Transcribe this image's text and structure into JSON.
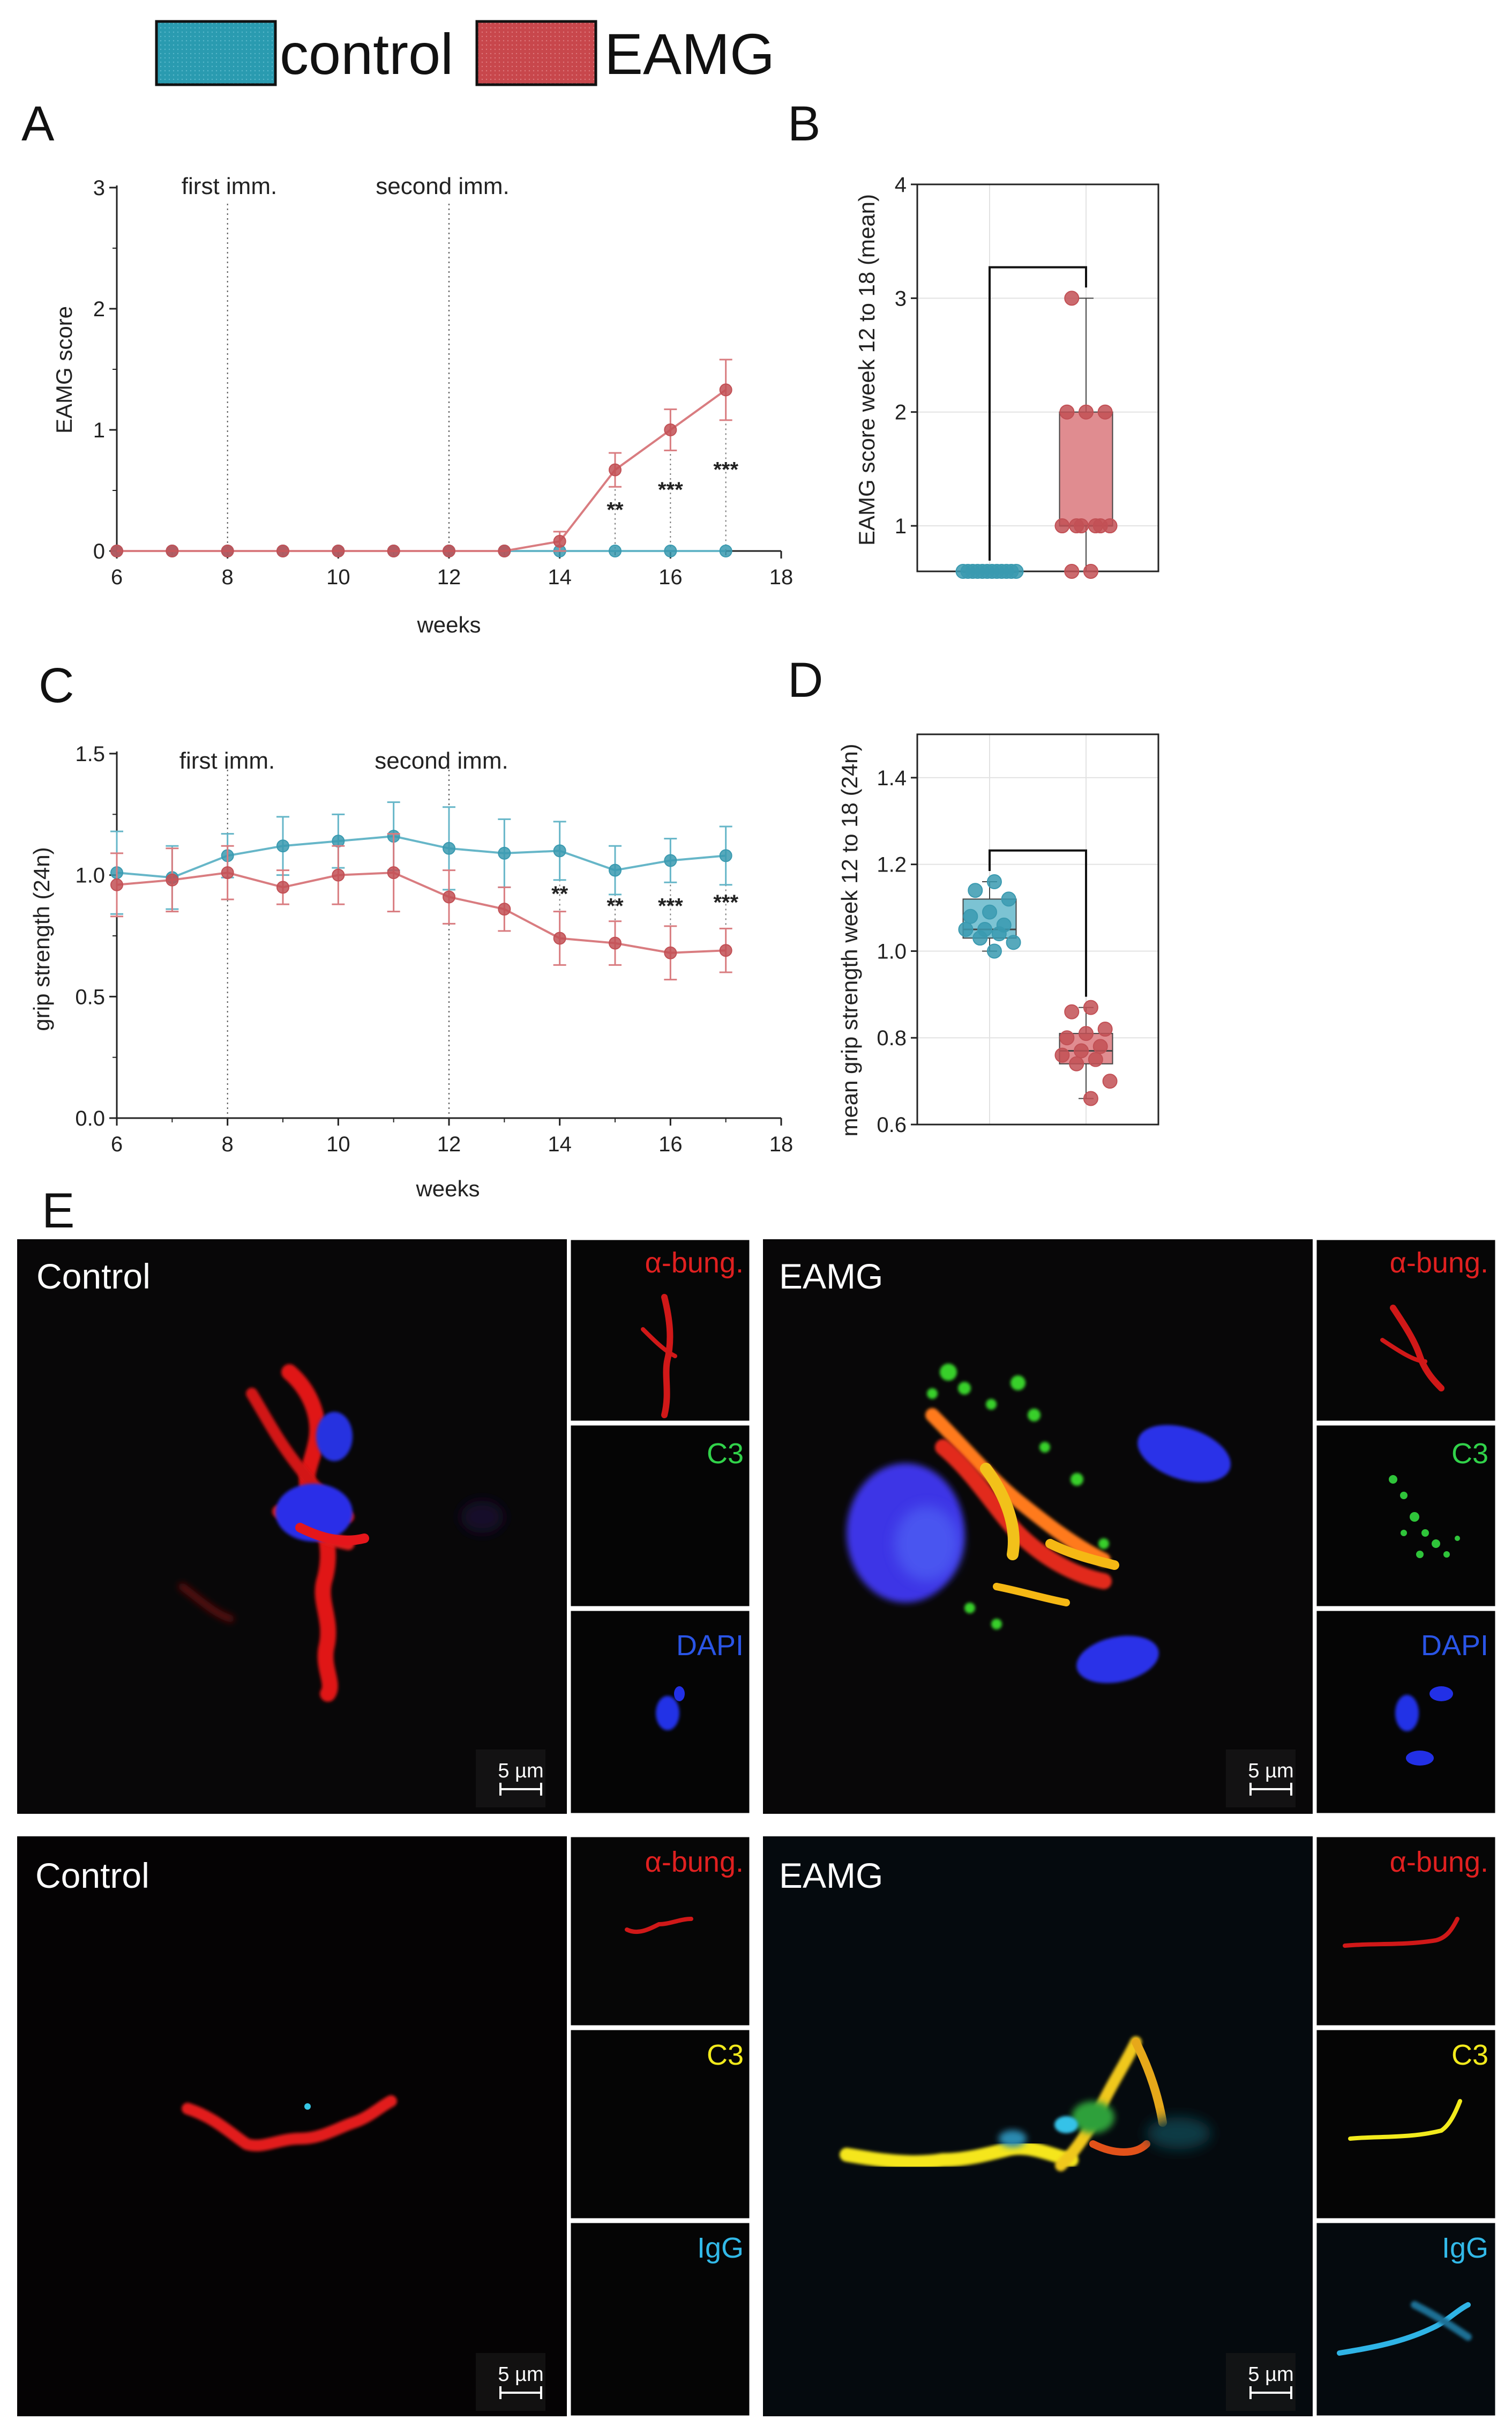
{
  "colors": {
    "control": "#3a9ab0",
    "eamg": "#c25055",
    "control_light": "#66b6c8",
    "eamg_light": "#d97c80"
  },
  "legend": [
    {
      "label": "control",
      "color": "#2a9bb0"
    },
    {
      "label": "EAMG",
      "color": "#c8474c"
    }
  ],
  "panel_letters": {
    "A": "A",
    "B": "B",
    "C": "C",
    "D": "D",
    "E": "E"
  },
  "chart_data": [
    {
      "panel": "A",
      "type": "line",
      "xlabel": "weeks",
      "ylabel": "EAMG score",
      "xlim": [
        6,
        18
      ],
      "ylim": [
        0,
        3
      ],
      "xticks": [
        "6",
        "8",
        "10",
        "12",
        "14",
        "16",
        "18"
      ],
      "yticks": [
        "0",
        "1",
        "2",
        "3"
      ],
      "annotations": [
        {
          "x": 8,
          "text": "first imm."
        },
        {
          "x": 12,
          "text": "second imm."
        }
      ],
      "x": [
        6,
        7,
        8,
        9,
        10,
        11,
        12,
        13,
        14,
        15,
        16,
        17
      ],
      "series": [
        {
          "name": "control",
          "values": [
            0,
            0,
            0,
            0,
            0,
            0,
            0,
            0,
            0,
            0,
            0,
            0
          ],
          "errors": [
            0,
            0,
            0,
            0,
            0,
            0,
            0,
            0,
            0,
            0,
            0,
            0
          ]
        },
        {
          "name": "EAMG",
          "values": [
            0,
            0,
            0,
            0,
            0,
            0,
            0,
            0,
            0.08,
            0.67,
            1.0,
            1.33
          ],
          "errors": [
            0,
            0,
            0,
            0,
            0,
            0,
            0,
            0,
            0.08,
            0.14,
            0.17,
            0.25
          ]
        }
      ],
      "significance": [
        {
          "x": 15,
          "text": "**"
        },
        {
          "x": 16,
          "text": "***"
        },
        {
          "x": 17,
          "text": "***"
        }
      ]
    },
    {
      "panel": "B",
      "type": "box",
      "ylabel": "EAMG score week 12 to 18 (mean)",
      "ylim": [
        0.6,
        4
      ],
      "yticks": [
        "1",
        "2",
        "3",
        "4"
      ],
      "groups": [
        {
          "name": "control",
          "points": [
            0.6,
            0.6,
            0.6,
            0.6,
            0.6,
            0.6,
            0.6,
            0.6,
            0.6,
            0.6,
            0.6,
            0.6
          ],
          "q1": 0.6,
          "median": 0.6,
          "q3": 0.6,
          "min": 0.6,
          "max": 0.6
        },
        {
          "name": "EAMG",
          "points": [
            0.6,
            0.6,
            1.0,
            1.0,
            1.0,
            1.0,
            1.0,
            1.0,
            2.0,
            2.0,
            2.0,
            3.0
          ],
          "q1": 1.0,
          "median": 1.0,
          "q3": 2.0,
          "min": 0.6,
          "max": 3.0
        }
      ],
      "significance": "***"
    },
    {
      "panel": "C",
      "type": "line",
      "xlabel": "weeks",
      "ylabel": "grip strength (24n)",
      "xlim": [
        6,
        18
      ],
      "ylim": [
        0,
        1.5
      ],
      "xticks": [
        "6",
        "8",
        "10",
        "12",
        "14",
        "16",
        "18"
      ],
      "yticks": [
        "0.0",
        "0.5",
        "1.0",
        "1.5"
      ],
      "annotations": [
        {
          "x": 8,
          "text": "first imm."
        },
        {
          "x": 12,
          "text": "second imm."
        }
      ],
      "x": [
        6,
        7,
        8,
        9,
        10,
        11,
        12,
        13,
        14,
        15,
        16,
        17
      ],
      "series": [
        {
          "name": "control",
          "values": [
            1.01,
            0.99,
            1.08,
            1.12,
            1.14,
            1.16,
            1.11,
            1.09,
            1.1,
            1.02,
            1.06,
            1.08
          ],
          "errors": [
            0.17,
            0.13,
            0.09,
            0.12,
            0.11,
            0.14,
            0.17,
            0.14,
            0.12,
            0.1,
            0.09,
            0.12
          ]
        },
        {
          "name": "EAMG",
          "values": [
            0.96,
            0.98,
            1.01,
            0.95,
            1.0,
            1.01,
            0.91,
            0.86,
            0.74,
            0.72,
            0.68,
            0.69
          ],
          "errors": [
            0.13,
            0.13,
            0.11,
            0.07,
            0.12,
            0.16,
            0.11,
            0.09,
            0.11,
            0.09,
            0.11,
            0.09
          ]
        }
      ],
      "significance": [
        {
          "x": 14,
          "text": "**"
        },
        {
          "x": 15,
          "text": "**"
        },
        {
          "x": 16,
          "text": "***"
        },
        {
          "x": 17,
          "text": "***"
        }
      ]
    },
    {
      "panel": "D",
      "type": "box",
      "ylabel": "mean grip strength week 12 to 18 (24n)",
      "ylim": [
        0.6,
        1.5
      ],
      "yticks": [
        "0.6",
        "0.8",
        "1.0",
        "1.2",
        "1.4"
      ],
      "groups": [
        {
          "name": "control",
          "points": [
            1.0,
            1.02,
            1.03,
            1.04,
            1.05,
            1.05,
            1.06,
            1.08,
            1.09,
            1.12,
            1.14,
            1.16
          ],
          "q1": 1.03,
          "median": 1.05,
          "q3": 1.12,
          "min": 1.0,
          "max": 1.16
        },
        {
          "name": "EAMG",
          "points": [
            0.66,
            0.7,
            0.74,
            0.75,
            0.76,
            0.77,
            0.78,
            0.8,
            0.81,
            0.82,
            0.86,
            0.87
          ],
          "q1": 0.74,
          "median": 0.77,
          "q3": 0.81,
          "min": 0.66,
          "max": 0.87
        }
      ],
      "significance": "***"
    }
  ],
  "microscopy": {
    "rows": [
      {
        "panels": [
          {
            "title": "Control",
            "insets": [
              "α-bung.",
              "C3",
              "DAPI"
            ],
            "scale": "5 µm"
          },
          {
            "title": "EAMG",
            "insets": [
              "α-bung.",
              "C3",
              "DAPI"
            ],
            "scale": "5 µm"
          }
        ]
      },
      {
        "panels": [
          {
            "title": "Control",
            "insets": [
              "α-bung.",
              "C3",
              "IgG"
            ],
            "scale": "5 µm"
          },
          {
            "title": "EAMG",
            "insets": [
              "α-bung.",
              "C3",
              "IgG"
            ],
            "scale": "5 µm"
          }
        ]
      }
    ],
    "row1_inset_colors": [
      "#e02020",
      "#31d24a",
      "#2a55e6"
    ],
    "row2_inset_colors": [
      "#e02020",
      "#f2ea1c",
      "#32b9e8"
    ]
  }
}
